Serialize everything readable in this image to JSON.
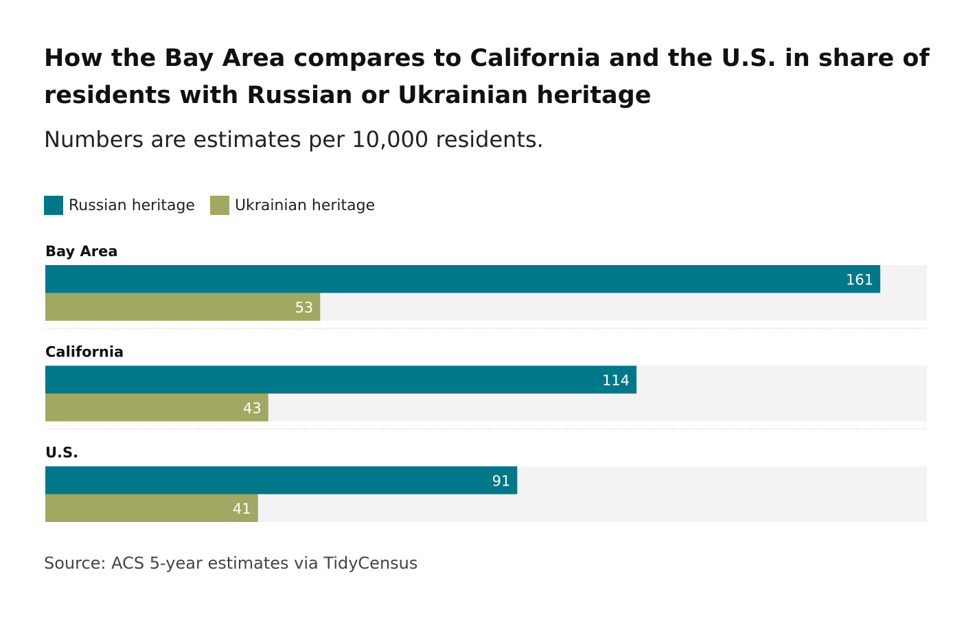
{
  "title": "How the Bay Area compares to California and the U.S. in share of residents with Russian or Ukrainian heritage",
  "subtitle": "Numbers are estimates per 10,000 residents.",
  "source": "Source: ACS 5-year estimates via TidyCensus",
  "colors": {
    "russian": "#00788a",
    "ukrainian": "#a2a861",
    "track": "#f3f3f3",
    "divider": "#cccccc",
    "bar_label": "#ffffff",
    "group_label": "#111111"
  },
  "chart_data": {
    "type": "bar",
    "orientation": "horizontal",
    "categories": [
      "Bay Area",
      "California",
      "U.S."
    ],
    "series": [
      {
        "name": "Russian heritage",
        "values": [
          161,
          114,
          91
        ]
      },
      {
        "name": "Ukrainian heritage",
        "values": [
          53,
          43,
          41
        ]
      }
    ],
    "xlim": [
      0,
      170
    ],
    "legend_position": "top-left",
    "data_labels": true,
    "grid": false
  }
}
